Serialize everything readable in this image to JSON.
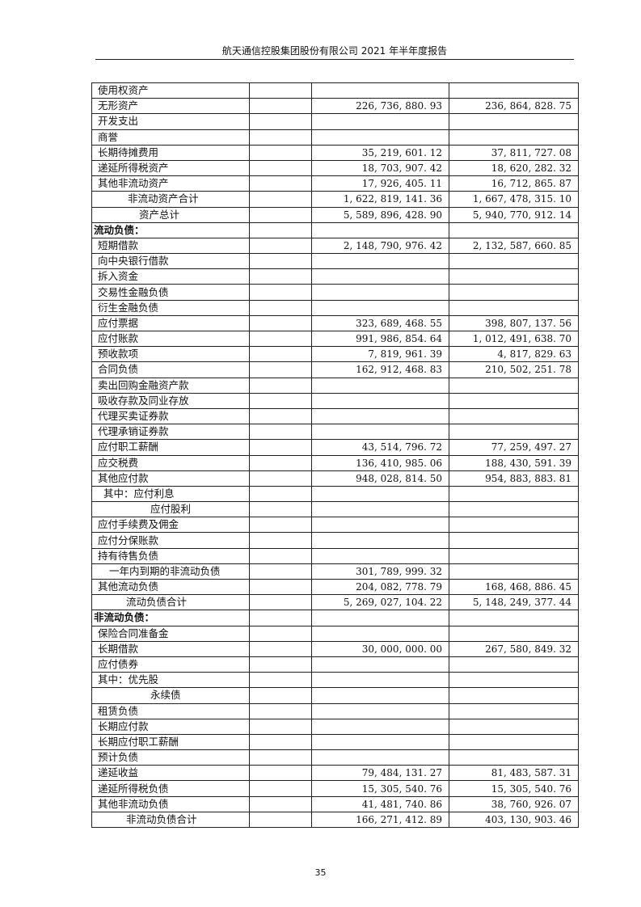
{
  "header": {
    "title": "航天通信控股集团股份有限公司 2021 年半年度报告"
  },
  "page_number": "35",
  "table": {
    "rows": [
      {
        "label": "使用权资产",
        "note": "",
        "current": "",
        "prior": ""
      },
      {
        "label": "无形资产",
        "note": "",
        "current": "226, 736, 880. 93",
        "prior": "236, 864, 828. 75"
      },
      {
        "label": "开发支出",
        "note": "",
        "current": "",
        "prior": ""
      },
      {
        "label": "商誉",
        "note": "",
        "current": "",
        "prior": ""
      },
      {
        "label": "长期待摊费用",
        "note": "",
        "current": "35, 219, 601. 12",
        "prior": "37, 811, 727. 08"
      },
      {
        "label": "递延所得税资产",
        "note": "",
        "current": "18, 703, 907. 42",
        "prior": "18, 620, 282. 32"
      },
      {
        "label": "其他非流动资产",
        "note": "",
        "current": "17, 926, 405. 11",
        "prior": "16, 712, 865. 87"
      },
      {
        "label": "非流动资产合计",
        "note": "",
        "current": "1, 622, 819, 141. 36",
        "prior": "1, 667, 478, 315. 10"
      },
      {
        "label": "资产总计",
        "note": "",
        "current": "5, 589, 896, 428. 90",
        "prior": "5, 940, 770, 912. 14"
      },
      {
        "label": "流动负债：",
        "note": "",
        "current": "",
        "prior": "",
        "section": true
      },
      {
        "label": "短期借款",
        "note": "",
        "current": "2, 148, 790, 976. 42",
        "prior": "2, 132, 587, 660. 85"
      },
      {
        "label": "向中央银行借款",
        "note": "",
        "current": "",
        "prior": ""
      },
      {
        "label": "拆入资金",
        "note": "",
        "current": "",
        "prior": ""
      },
      {
        "label": "交易性金融负债",
        "note": "",
        "current": "",
        "prior": ""
      },
      {
        "label": "衍生金融负债",
        "note": "",
        "current": "",
        "prior": ""
      },
      {
        "label": "应付票据",
        "note": "",
        "current": "323, 689, 468. 55",
        "prior": "398, 807, 137. 56"
      },
      {
        "label": "应付账款",
        "note": "",
        "current": "991, 986, 854. 64",
        "prior": "1, 012, 491, 638. 70"
      },
      {
        "label": "预收款项",
        "note": "",
        "current": "7, 819, 961. 39",
        "prior": "4, 817, 829. 63"
      },
      {
        "label": "合同负债",
        "note": "",
        "current": "162, 912, 468. 83",
        "prior": "210, 502, 251. 78"
      },
      {
        "label": "卖出回购金融资产款",
        "note": "",
        "current": "",
        "prior": ""
      },
      {
        "label": "吸收存款及同业存放",
        "note": "",
        "current": "",
        "prior": ""
      },
      {
        "label": "代理买卖证券款",
        "note": "",
        "current": "",
        "prior": ""
      },
      {
        "label": "代理承销证券款",
        "note": "",
        "current": "",
        "prior": ""
      },
      {
        "label": "应付职工薪酬",
        "note": "",
        "current": "43, 514, 796. 72",
        "prior": "77, 259, 497. 27"
      },
      {
        "label": "应交税费",
        "note": "",
        "current": "136, 410, 985. 06",
        "prior": "188, 430, 591. 39"
      },
      {
        "label": "其他应付款",
        "note": "",
        "current": "948, 028, 814. 50",
        "prior": "954, 883, 883. 81"
      },
      {
        "label": "其中：应付利息",
        "note": "",
        "current": "",
        "prior": ""
      },
      {
        "label": "应付股利",
        "note": "",
        "current": "",
        "prior": ""
      },
      {
        "label": "应付手续费及佣金",
        "note": "",
        "current": "",
        "prior": ""
      },
      {
        "label": "应付分保账款",
        "note": "",
        "current": "",
        "prior": ""
      },
      {
        "label": "持有待售负债",
        "note": "",
        "current": "",
        "prior": ""
      },
      {
        "label": "一年内到期的非流动负债",
        "note": "",
        "current": "301, 789, 999. 32",
        "prior": ""
      },
      {
        "label": "其他流动负债",
        "note": "",
        "current": "204, 082, 778. 79",
        "prior": "168, 468, 886. 45"
      },
      {
        "label": "流动负债合计",
        "note": "",
        "current": "5, 269, 027, 104. 22",
        "prior": "5, 148, 249, 377. 44"
      },
      {
        "label": "非流动负债：",
        "note": "",
        "current": "",
        "prior": "",
        "section": true
      },
      {
        "label": "保险合同准备金",
        "note": "",
        "current": "",
        "prior": ""
      },
      {
        "label": "长期借款",
        "note": "",
        "current": "30, 000, 000. 00",
        "prior": "267, 580, 849. 32"
      },
      {
        "label": "应付债券",
        "note": "",
        "current": "",
        "prior": ""
      },
      {
        "label": "其中：优先股",
        "note": "",
        "current": "",
        "prior": ""
      },
      {
        "label": "永续债",
        "note": "",
        "current": "",
        "prior": ""
      },
      {
        "label": "租赁负债",
        "note": "",
        "current": "",
        "prior": ""
      },
      {
        "label": "长期应付款",
        "note": "",
        "current": "",
        "prior": ""
      },
      {
        "label": "长期应付职工薪酬",
        "note": "",
        "current": "",
        "prior": ""
      },
      {
        "label": "预计负债",
        "note": "",
        "current": "",
        "prior": ""
      },
      {
        "label": "递延收益",
        "note": "",
        "current": "79, 484, 131. 27",
        "prior": "81, 483, 587. 31"
      },
      {
        "label": "递延所得税负债",
        "note": "",
        "current": "15, 305, 540. 76",
        "prior": "15, 305, 540. 76"
      },
      {
        "label": "其他非流动负债",
        "note": "",
        "current": "41, 481, 740. 86",
        "prior": "38, 760, 926. 07"
      },
      {
        "label": "非流动负债合计",
        "note": "",
        "current": "166, 271, 412. 89",
        "prior": "403, 130, 903. 46"
      }
    ]
  }
}
